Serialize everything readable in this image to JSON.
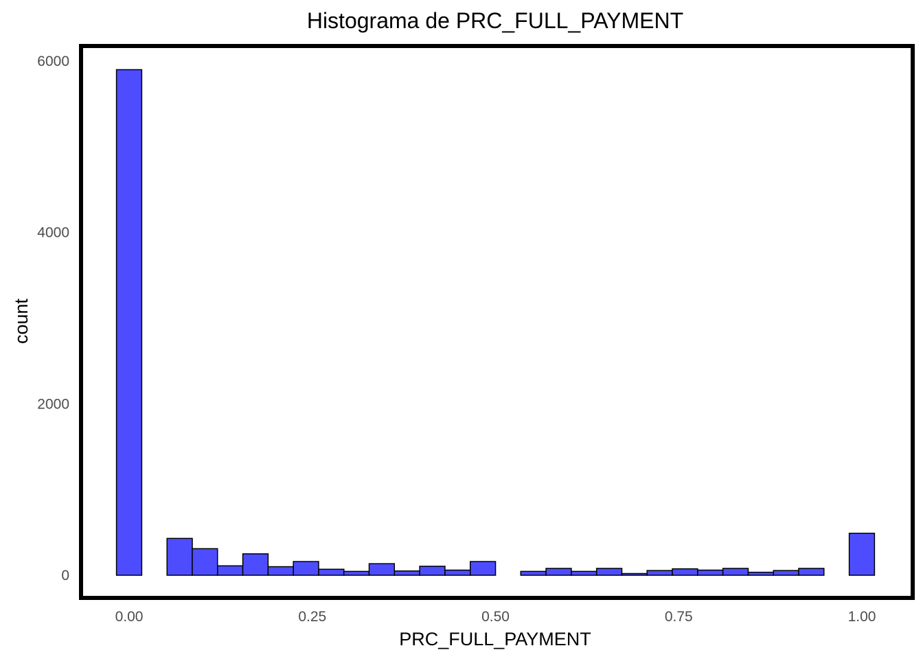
{
  "chart_data": {
    "type": "bar",
    "title": "Histograma de PRC_FULL_PAYMENT",
    "xlabel": "PRC_FULL_PAYMENT",
    "ylabel": "count",
    "xlim": [
      -0.0345,
      1.0345
    ],
    "ylim": [
      -260,
      6190
    ],
    "x_ticks": [
      0,
      0.25,
      0.5,
      0.75,
      1.0
    ],
    "x_tick_labels": [
      "0.00",
      "0.25",
      "0.50",
      "0.75",
      "1.00"
    ],
    "y_ticks": [
      0,
      2000,
      4000,
      6000
    ],
    "y_tick_labels": [
      "0",
      "2000",
      "4000",
      "6000"
    ],
    "bin_width": 0.0345,
    "bin_centers": [
      0.0,
      0.0345,
      0.069,
      0.1034,
      0.1379,
      0.1724,
      0.2069,
      0.2414,
      0.2759,
      0.3103,
      0.3448,
      0.3793,
      0.4138,
      0.4483,
      0.4828,
      0.5172,
      0.5517,
      0.5862,
      0.6207,
      0.6552,
      0.6897,
      0.7241,
      0.7586,
      0.7931,
      0.8276,
      0.8621,
      0.8966,
      0.931,
      0.9655,
      1.0
    ],
    "counts": [
      5900,
      0,
      430,
      310,
      110,
      250,
      100,
      160,
      70,
      45,
      135,
      50,
      105,
      60,
      160,
      0,
      45,
      80,
      45,
      80,
      20,
      55,
      75,
      60,
      80,
      35,
      55,
      80,
      0,
      490
    ],
    "bar_fill": "#4D4DFF",
    "bar_stroke": "#000000",
    "grid": false,
    "panel_border": true
  }
}
